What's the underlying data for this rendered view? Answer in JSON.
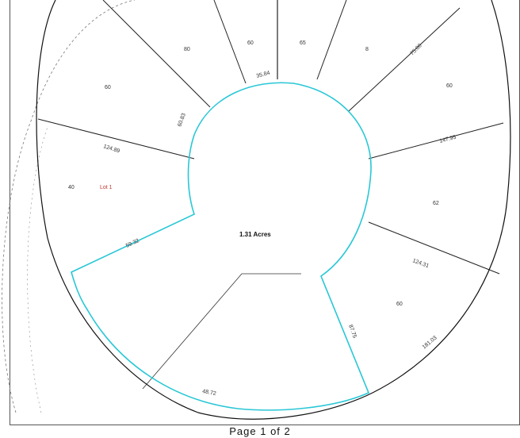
{
  "map": {
    "center_area_label": "1.31 Acres",
    "accent_color": "#29c7d6",
    "line_color": "#222222",
    "parcels": [
      {
        "id": "p1",
        "label": "60"
      },
      {
        "id": "p2",
        "label": "80"
      },
      {
        "id": "p3",
        "label": "60"
      },
      {
        "id": "p4",
        "label": "65"
      },
      {
        "id": "p5",
        "label": "8"
      },
      {
        "id": "p6",
        "label": "60"
      },
      {
        "id": "p7",
        "label": "62"
      },
      {
        "id": "p8",
        "label": "60"
      },
      {
        "id": "p9",
        "label": "40"
      }
    ],
    "notes": [
      {
        "id": "n1",
        "text": "Lot 1"
      }
    ],
    "dimensions": [
      "124.89",
      "59.32",
      "35.84",
      "147.95",
      "124.31",
      "181.03",
      "87.75",
      "48.72",
      "60.83",
      "75.00"
    ]
  },
  "footer": {
    "page_text": "Page  1  of  2"
  }
}
